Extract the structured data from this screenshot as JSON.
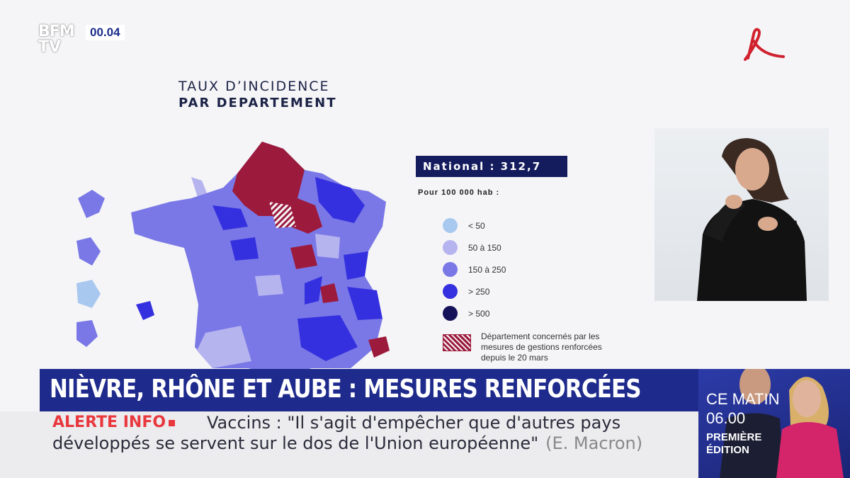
{
  "channel": {
    "logo_line1": "BFM",
    "logo_line2": "TV",
    "clock": "00.04"
  },
  "slide": {
    "title_line1": "TAUX D’INCIDENCE",
    "title_line2": "PAR DEPARTEMENT",
    "national": "National : 312,7",
    "per": "Pour 100 000 hab :",
    "legend": [
      {
        "label": "< 50",
        "color": "#a8c8f0"
      },
      {
        "label": "50 à 150",
        "color": "#b6b4ef"
      },
      {
        "label": "150 à 250",
        "color": "#7a78e6"
      },
      {
        "label": "> 250",
        "color": "#3530df"
      },
      {
        "label": "> 500",
        "color": "#15125a"
      }
    ],
    "hatch_label": "Département concernés par les mesures de gestions renforcées depuis le 20 mars",
    "hatch_color": "#9c1a3c"
  },
  "banner": {
    "headline": "NIÈVRE, RHÔNE ET AUBE : MESURES RENFORCÉES"
  },
  "ticker": {
    "alert": "ALERTE INFO",
    "line1": "Vaccins : \"Il s'agit d'empêcher que d'autres pays",
    "line2": "développés se servent sur le dos de l'Union européenne\"",
    "source": "(E. Macron)"
  },
  "promo": {
    "show_line1": "CE MATIN",
    "show_time": "06.00",
    "edition_line1": "PREMIÈRE",
    "edition_line2": "ÉDITION"
  }
}
